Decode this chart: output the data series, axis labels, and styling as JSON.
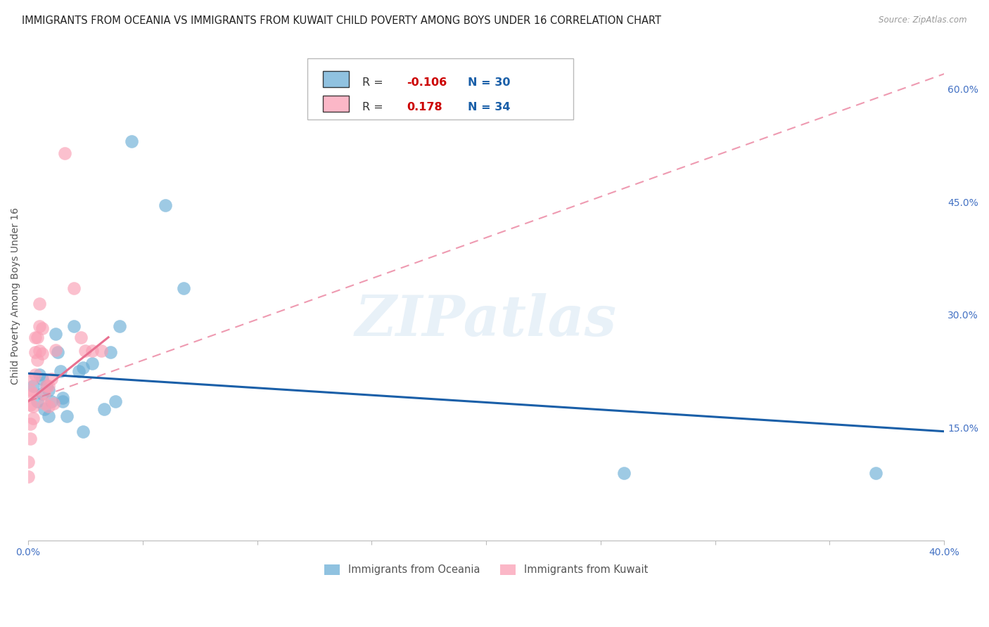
{
  "title": "IMMIGRANTS FROM OCEANIA VS IMMIGRANTS FROM KUWAIT CHILD POVERTY AMONG BOYS UNDER 16 CORRELATION CHART",
  "source": "Source: ZipAtlas.com",
  "ylabel": "Child Poverty Among Boys Under 16",
  "ytick_values": [
    0.0,
    0.15,
    0.3,
    0.45,
    0.6
  ],
  "ytick_labels": [
    "",
    "15.0%",
    "30.0%",
    "45.0%",
    "60.0%"
  ],
  "xlim": [
    0.0,
    0.4
  ],
  "ylim": [
    0.0,
    0.65
  ],
  "legend_blue_R": "-0.106",
  "legend_blue_N": "30",
  "legend_pink_R": "0.178",
  "legend_pink_N": "34",
  "series_blue": {
    "name": "Immigrants from Oceania",
    "color": "#6baed6",
    "x": [
      0.002,
      0.004,
      0.005,
      0.006,
      0.006,
      0.007,
      0.008,
      0.009,
      0.009,
      0.01,
      0.012,
      0.013,
      0.014,
      0.015,
      0.015,
      0.017,
      0.02,
      0.022,
      0.024,
      0.024,
      0.028,
      0.033,
      0.036,
      0.038,
      0.04,
      0.045,
      0.06,
      0.068,
      0.26,
      0.37
    ],
    "y": [
      0.205,
      0.185,
      0.22,
      0.215,
      0.195,
      0.175,
      0.205,
      0.165,
      0.2,
      0.185,
      0.275,
      0.25,
      0.225,
      0.19,
      0.185,
      0.165,
      0.285,
      0.225,
      0.145,
      0.23,
      0.235,
      0.175,
      0.25,
      0.185,
      0.285,
      0.53,
      0.445,
      0.335,
      0.09,
      0.09
    ]
  },
  "series_pink": {
    "name": "Immigrants from Kuwait",
    "color": "#fa9fb5",
    "x": [
      0.0,
      0.0,
      0.001,
      0.001,
      0.001,
      0.001,
      0.002,
      0.002,
      0.002,
      0.002,
      0.003,
      0.003,
      0.003,
      0.004,
      0.004,
      0.005,
      0.005,
      0.005,
      0.006,
      0.006,
      0.007,
      0.007,
      0.008,
      0.009,
      0.009,
      0.01,
      0.011,
      0.012,
      0.016,
      0.02,
      0.023,
      0.025,
      0.028,
      0.032
    ],
    "y": [
      0.105,
      0.085,
      0.2,
      0.18,
      0.155,
      0.135,
      0.215,
      0.195,
      0.178,
      0.162,
      0.27,
      0.25,
      0.22,
      0.27,
      0.24,
      0.315,
      0.285,
      0.252,
      0.282,
      0.248,
      0.195,
      0.182,
      0.205,
      0.205,
      0.178,
      0.215,
      0.182,
      0.253,
      0.515,
      0.335,
      0.27,
      0.252,
      0.252,
      0.252
    ]
  },
  "blue_line": {
    "x0": 0.0,
    "x1": 0.4,
    "y0": 0.222,
    "y1": 0.145
  },
  "pink_solid_line": {
    "x0": 0.0,
    "x1": 0.035,
    "y0": 0.185,
    "y1": 0.27
  },
  "pink_dashed_line": {
    "x0": 0.0,
    "x1": 0.4,
    "y0": 0.185,
    "y1": 0.62
  },
  "watermark": "ZIPatlas",
  "background_color": "#ffffff",
  "grid_color": "#d8d8d8",
  "tick_color": "#4472c4",
  "title_color": "#222222",
  "title_fontsize": 10.5,
  "axis_label_fontsize": 9,
  "tick_fontsize": 10
}
